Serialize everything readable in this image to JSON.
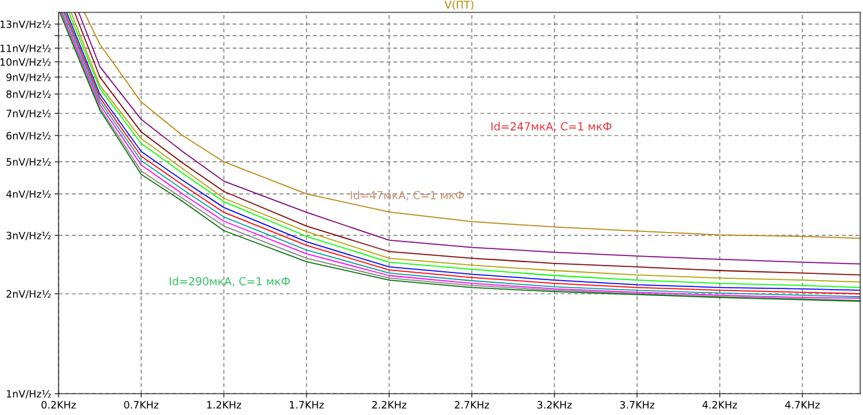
{
  "chart_data": {
    "type": "line",
    "title": "V(ПТ)",
    "series": [
      {
        "color": "#b8860b",
        "x": [
          0.356,
          0.45,
          0.7,
          0.95,
          1.2,
          1.7,
          2.2,
          2.7,
          3.2,
          3.7,
          4.2,
          4.7,
          5.05
        ],
        "values": [
          14.1,
          11.3,
          7.57,
          6.0,
          5.0,
          4.0,
          3.53,
          3.3,
          3.18,
          3.09,
          3.01,
          2.98,
          2.94
        ]
      },
      {
        "color": "#800080",
        "x": [
          0.322,
          0.45,
          0.7,
          0.95,
          1.2,
          1.7,
          2.2,
          2.7,
          3.2,
          3.7,
          4.2,
          4.7,
          5.05
        ],
        "values": [
          14.1,
          9.68,
          6.71,
          5.37,
          4.37,
          3.52,
          2.9,
          2.76,
          2.67,
          2.6,
          2.54,
          2.49,
          2.46
        ]
      },
      {
        "color": "#800000",
        "x": [
          0.297,
          0.45,
          0.7,
          0.95,
          1.2,
          1.7,
          2.2,
          2.7,
          3.2,
          3.7,
          4.2,
          4.7,
          5.05
        ],
        "values": [
          14.1,
          9.0,
          6.15,
          4.96,
          4.07,
          3.2,
          2.68,
          2.56,
          2.47,
          2.41,
          2.35,
          2.31,
          2.28
        ]
      },
      {
        "color": "#b0a000",
        "x": [
          0.276,
          0.45,
          0.7,
          0.95,
          1.2,
          1.7,
          2.2,
          2.7,
          3.2,
          3.7,
          4.2,
          4.7,
          5.05
        ],
        "values": [
          14.1,
          8.5,
          5.87,
          4.77,
          3.88,
          3.08,
          2.56,
          2.44,
          2.35,
          2.28,
          2.23,
          2.2,
          2.17
        ]
      },
      {
        "color": "#00ff00",
        "x": [
          0.262,
          0.45,
          0.7,
          0.95,
          1.2,
          1.7,
          2.2,
          2.7,
          3.2,
          3.7,
          4.2,
          4.7,
          5.05
        ],
        "values": [
          14.1,
          8.32,
          5.68,
          4.62,
          3.79,
          2.98,
          2.49,
          2.37,
          2.27,
          2.2,
          2.15,
          2.12,
          2.09
        ]
      },
      {
        "color": "#0000ff",
        "x": [
          0.249,
          0.45,
          0.7,
          0.95,
          1.2,
          1.7,
          2.2,
          2.7,
          3.2,
          3.7,
          4.2,
          4.7,
          5.05
        ],
        "values": [
          14.1,
          7.99,
          5.37,
          4.4,
          3.64,
          2.87,
          2.41,
          2.29,
          2.2,
          2.13,
          2.09,
          2.07,
          2.05
        ]
      },
      {
        "color": "#ff0000",
        "x": [
          0.239,
          0.45,
          0.7,
          0.95,
          1.2,
          1.7,
          2.2,
          2.7,
          3.2,
          3.7,
          4.2,
          4.7,
          5.05
        ],
        "values": [
          14.1,
          7.8,
          5.2,
          4.26,
          3.52,
          2.8,
          2.36,
          2.24,
          2.15,
          2.09,
          2.05,
          2.02,
          2.0
        ]
      },
      {
        "color": "#00a0a0",
        "x": [
          0.231,
          0.45,
          0.7,
          0.95,
          1.2,
          1.7,
          2.2,
          2.7,
          3.2,
          3.7,
          4.2,
          4.7,
          5.05
        ],
        "values": [
          14.1,
          7.62,
          5.04,
          4.13,
          3.41,
          2.71,
          2.31,
          2.19,
          2.1,
          2.05,
          2.01,
          1.98,
          1.96
        ]
      },
      {
        "color": "#ff00ff",
        "x": [
          0.221,
          0.45,
          0.7,
          0.95,
          1.2,
          1.7,
          2.2,
          2.7,
          3.2,
          3.7,
          4.2,
          4.7,
          5.05
        ],
        "values": [
          14.1,
          7.44,
          4.89,
          4.0,
          3.31,
          2.64,
          2.27,
          2.15,
          2.07,
          2.02,
          1.98,
          1.95,
          1.94
        ]
      },
      {
        "color": "#808080",
        "x": [
          0.214,
          0.45,
          0.7,
          0.95,
          1.2,
          1.7,
          2.2,
          2.7,
          3.2,
          3.7,
          4.2,
          4.7,
          5.05
        ],
        "values": [
          14.1,
          7.27,
          4.69,
          3.88,
          3.2,
          2.56,
          2.23,
          2.12,
          2.05,
          2.0,
          1.96,
          1.93,
          1.91
        ]
      },
      {
        "color": "#007000",
        "x": [
          0.207,
          0.45,
          0.7,
          0.95,
          1.2,
          1.7,
          2.2,
          2.7,
          3.2,
          3.7,
          4.2,
          4.7,
          5.05
        ],
        "values": [
          14.1,
          7.16,
          4.58,
          3.8,
          3.1,
          2.5,
          2.2,
          2.09,
          2.03,
          1.99,
          1.95,
          1.92,
          1.9
        ]
      }
    ],
    "annotations": [
      "Id=247мкА, C=1 мкФ",
      "Id=47мкА, C=1 мкФ",
      "Id=290мкА, C=1 мкФ"
    ],
    "log": "y",
    "xlim": [
      0.2,
      5.05
    ],
    "xticks": [
      {
        "value": 0.2,
        "label": "0.2KHz"
      },
      {
        "value": 0.7,
        "label": "0.7KHz"
      },
      {
        "value": 1.2,
        "label": "1.2KHz"
      },
      {
        "value": 1.7,
        "label": "1.7KHz"
      },
      {
        "value": 2.2,
        "label": "2.2KHz"
      },
      {
        "value": 2.7,
        "label": "2.7KHz"
      },
      {
        "value": 3.2,
        "label": "3.2KHz"
      },
      {
        "value": 3.7,
        "label": "3.7KHz"
      },
      {
        "value": 4.2,
        "label": "4.2KHz"
      },
      {
        "value": 4.7,
        "label": "4.7KHz"
      }
    ],
    "ylim": [
      1,
      14.1
    ],
    "yticks": [
      {
        "value": 1,
        "label": "1nV/Hz½"
      },
      {
        "value": 2,
        "label": "2nV/Hz½"
      },
      {
        "value": 3,
        "label": "3nV/Hz½"
      },
      {
        "value": 4,
        "label": "4nV/Hz½"
      },
      {
        "value": 5,
        "label": "5nV/Hz½"
      },
      {
        "value": 6,
        "label": "6nV/Hz½"
      },
      {
        "value": 7,
        "label": "7nV/Hz½"
      },
      {
        "value": 8,
        "label": "8nV/Hz½"
      },
      {
        "value": 9,
        "label": "9nV/Hz½"
      },
      {
        "value": 10,
        "label": "10nV/Hz½"
      },
      {
        "value": 11,
        "label": "11nV/Hz½"
      },
      {
        "value": 12,
        "label": null
      },
      {
        "value": 13,
        "label": "13nV/Hz½"
      }
    ],
    "grid": true,
    "line_style": "solid",
    "marker": "none",
    "legend": false
  }
}
